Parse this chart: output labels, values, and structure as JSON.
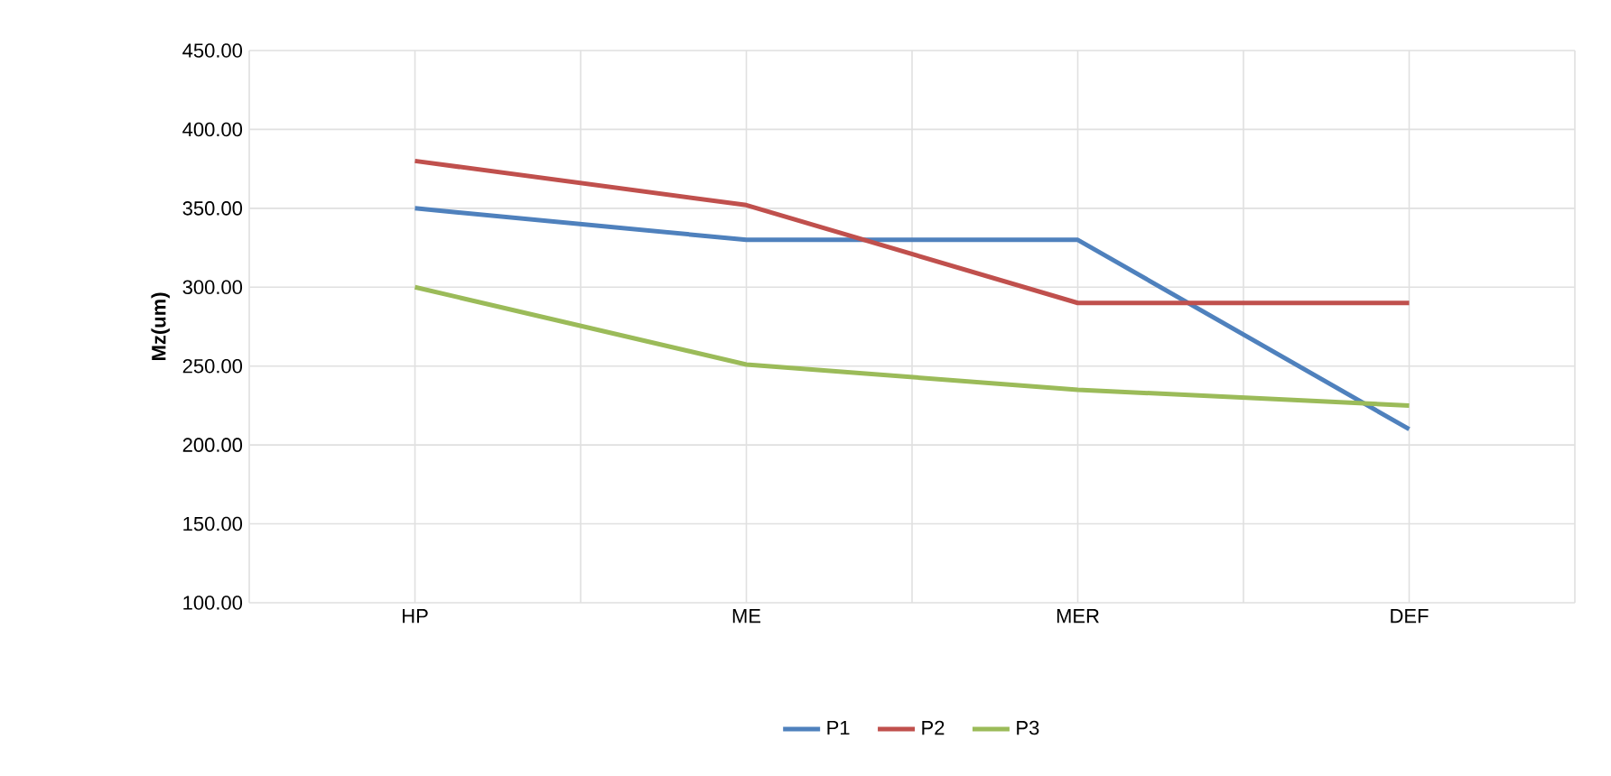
{
  "chart_data": {
    "type": "line",
    "ylabel": "Mz(um)",
    "categories": [
      "HP",
      "ME",
      "MER",
      "DEF"
    ],
    "series": [
      {
        "name": "P1",
        "color": "#4f81bd",
        "values": [
          350,
          330,
          330,
          210
        ]
      },
      {
        "name": "P2",
        "color": "#c0504d",
        "values": [
          380,
          352,
          290,
          290
        ]
      },
      {
        "name": "P3",
        "color": "#9bbb59",
        "values": [
          300,
          251,
          235,
          225
        ]
      }
    ],
    "ylim": [
      100,
      450
    ],
    "yticks": [
      {
        "value": 100,
        "label": "100.00"
      },
      {
        "value": 150,
        "label": "150.00"
      },
      {
        "value": 200,
        "label": "200.00"
      },
      {
        "value": 250,
        "label": "250.00"
      },
      {
        "value": 300,
        "label": "300.00"
      },
      {
        "value": 350,
        "label": "350.00"
      },
      {
        "value": 400,
        "label": "400.00"
      },
      {
        "value": 450,
        "label": "450.00"
      }
    ],
    "grid": true,
    "legend": "bottom",
    "marker": "none",
    "line_style": "solid"
  }
}
